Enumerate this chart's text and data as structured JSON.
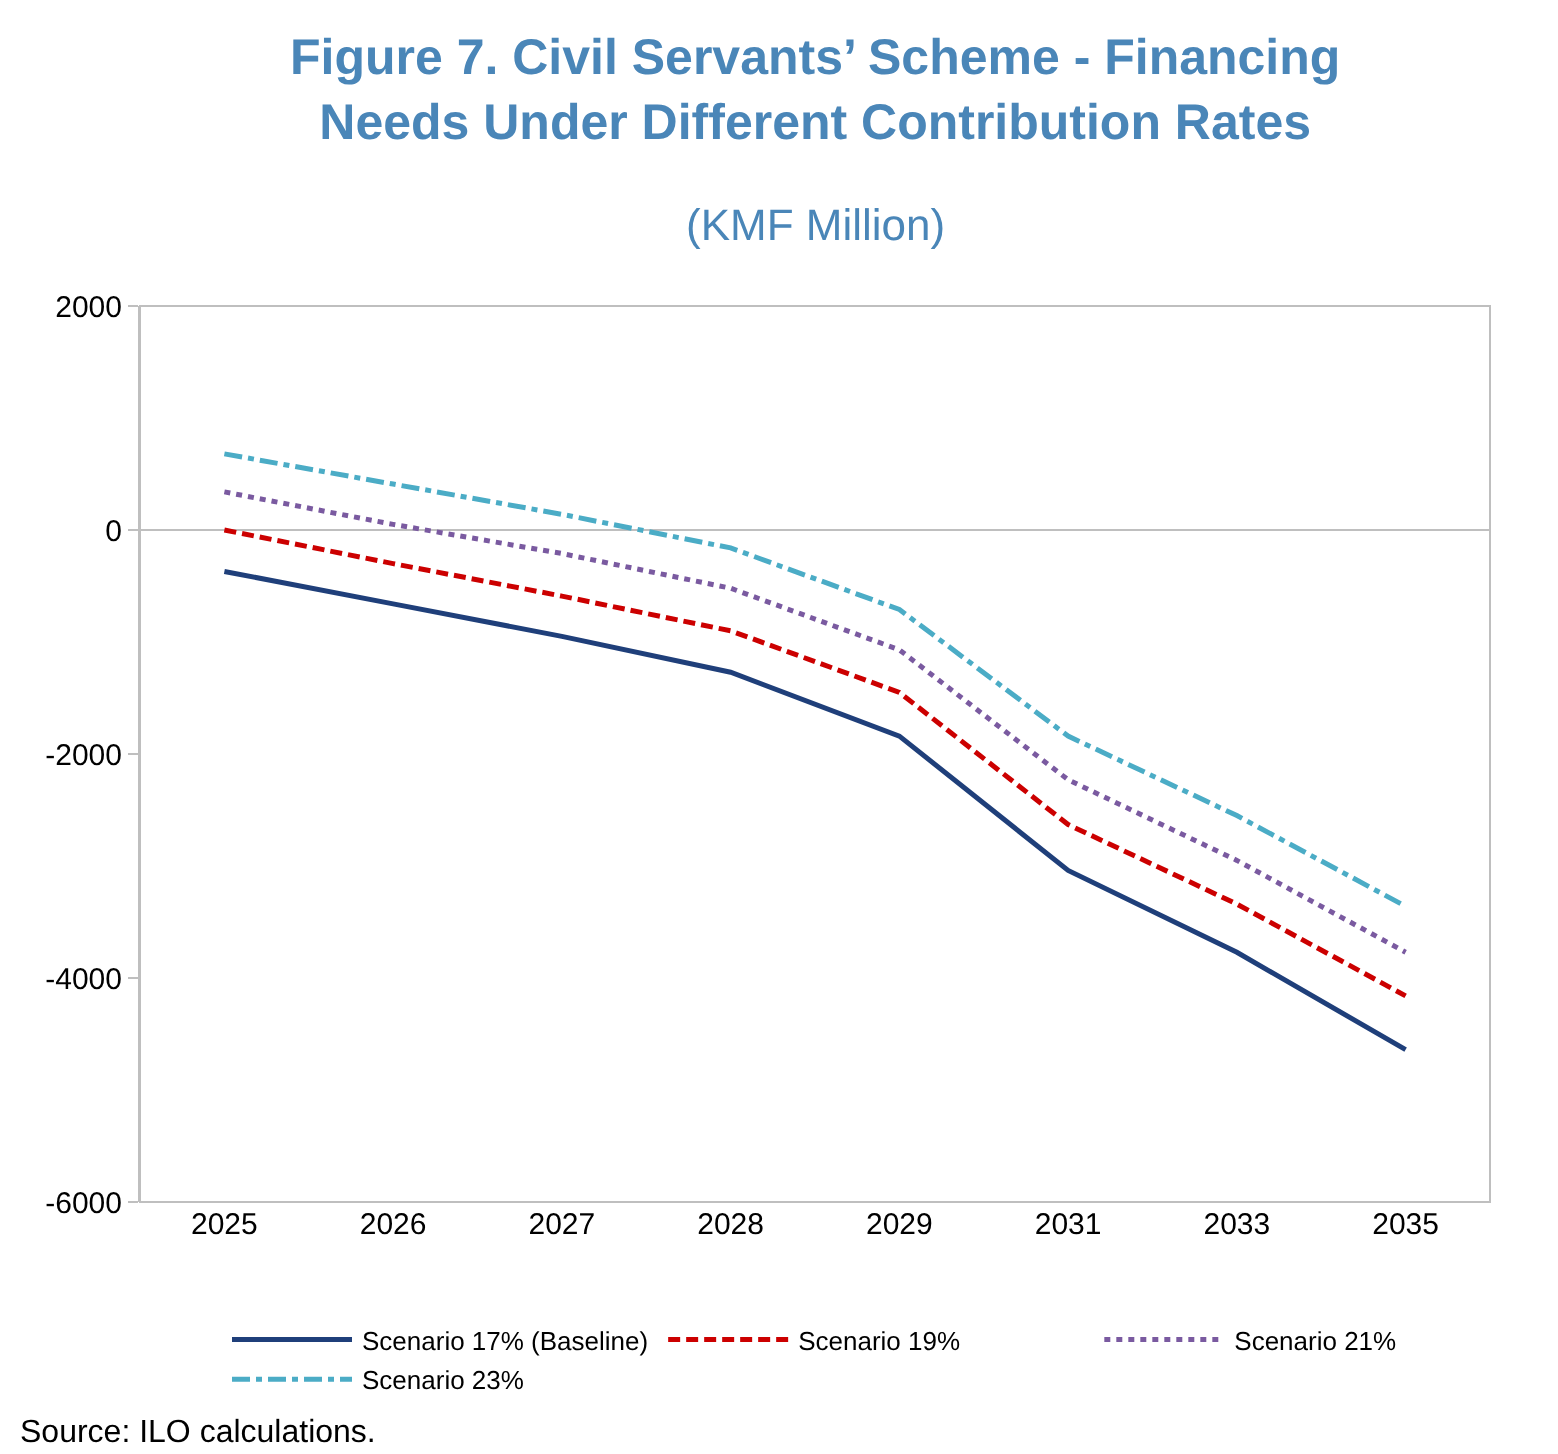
{
  "chart_data": {
    "type": "line",
    "title": "Figure 7. Civil Servants’ Scheme - Financing Needs Under Different Contribution Rates",
    "subtitle": "(KMF Million)",
    "categories": [
      "2025",
      "2026",
      "2027",
      "2028",
      "2029",
      "2031",
      "2033",
      "2035"
    ],
    "series": [
      {
        "name": "Scenario 17% (Baseline)",
        "color": "#1f3f7a",
        "line_style": "solid",
        "values": [
          -370,
          -660,
          -950,
          -1270,
          -1840,
          -3040,
          -3770,
          -4640
        ]
      },
      {
        "name": "Scenario 19%",
        "color": "#cc0000",
        "line_style": "dashed",
        "values": [
          0,
          -300,
          -590,
          -900,
          -1450,
          -2630,
          -3340,
          -4160
        ]
      },
      {
        "name": "Scenario 21%",
        "color": "#7a5aa0",
        "line_style": "dotted",
        "values": [
          340,
          50,
          -210,
          -520,
          -1070,
          -2230,
          -2950,
          -3770
        ]
      },
      {
        "name": "Scenario 23%",
        "color": "#4bacc6",
        "line_style": "dashdot",
        "values": [
          680,
          410,
          140,
          -160,
          -710,
          -1840,
          -2550,
          -3360
        ]
      }
    ],
    "ylim": [
      -6000,
      2000
    ],
    "yticks": [
      -6000,
      -4000,
      -2000,
      0,
      2000
    ],
    "ref_lines": [
      {
        "axis": "y",
        "value": 0,
        "color": "#bfbfbf"
      }
    ],
    "grid": false,
    "legend": "bottom",
    "marker": "none",
    "annotations": [
      "Source: ILO calculations."
    ]
  }
}
